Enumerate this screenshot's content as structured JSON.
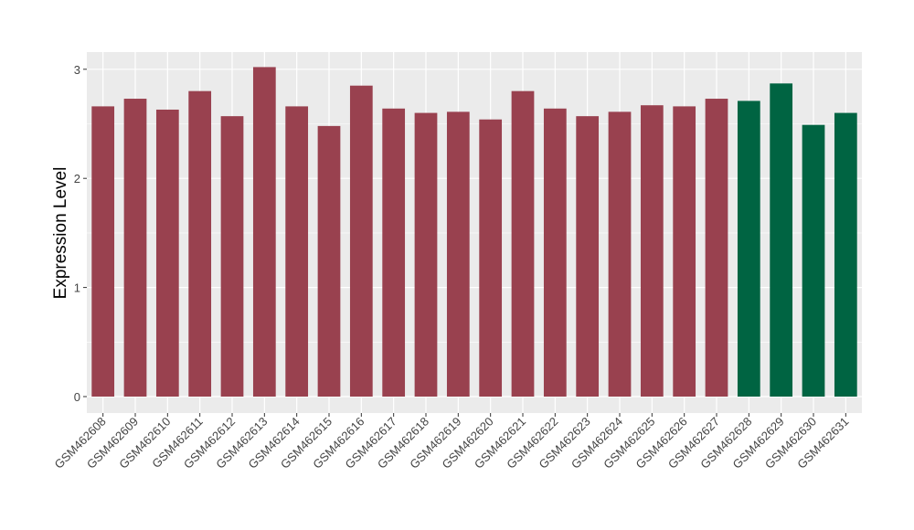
{
  "chart_data": {
    "type": "bar",
    "title": "",
    "xlabel": "",
    "ylabel": "Expression Level",
    "ylim": [
      -0.15,
      3.15
    ],
    "yticks": [
      0,
      1,
      2,
      3
    ],
    "grid": true,
    "categories": [
      "GSM462608",
      "GSM462609",
      "GSM462610",
      "GSM462611",
      "GSM462612",
      "GSM462613",
      "GSM462614",
      "GSM462615",
      "GSM462616",
      "GSM462617",
      "GSM462618",
      "GSM462619",
      "GSM462620",
      "GSM462621",
      "GSM462622",
      "GSM462623",
      "GSM462624",
      "GSM462625",
      "GSM462626",
      "GSM462627",
      "GSM462628",
      "GSM462629",
      "GSM462630",
      "GSM462631"
    ],
    "values": [
      2.66,
      2.73,
      2.63,
      2.8,
      2.57,
      3.02,
      2.66,
      2.48,
      2.85,
      2.64,
      2.6,
      2.61,
      2.54,
      2.8,
      2.64,
      2.57,
      2.61,
      2.67,
      2.66,
      2.73,
      2.71,
      2.87,
      2.49,
      2.6
    ],
    "groups": [
      "a",
      "a",
      "a",
      "a",
      "a",
      "a",
      "a",
      "a",
      "a",
      "a",
      "a",
      "a",
      "a",
      "a",
      "a",
      "a",
      "a",
      "a",
      "a",
      "a",
      "b",
      "b",
      "b",
      "b"
    ],
    "colors": {
      "a": "#99414f",
      "b": "#006442"
    },
    "panel_background": "#ebebeb",
    "gridline_color": "#ffffff"
  }
}
